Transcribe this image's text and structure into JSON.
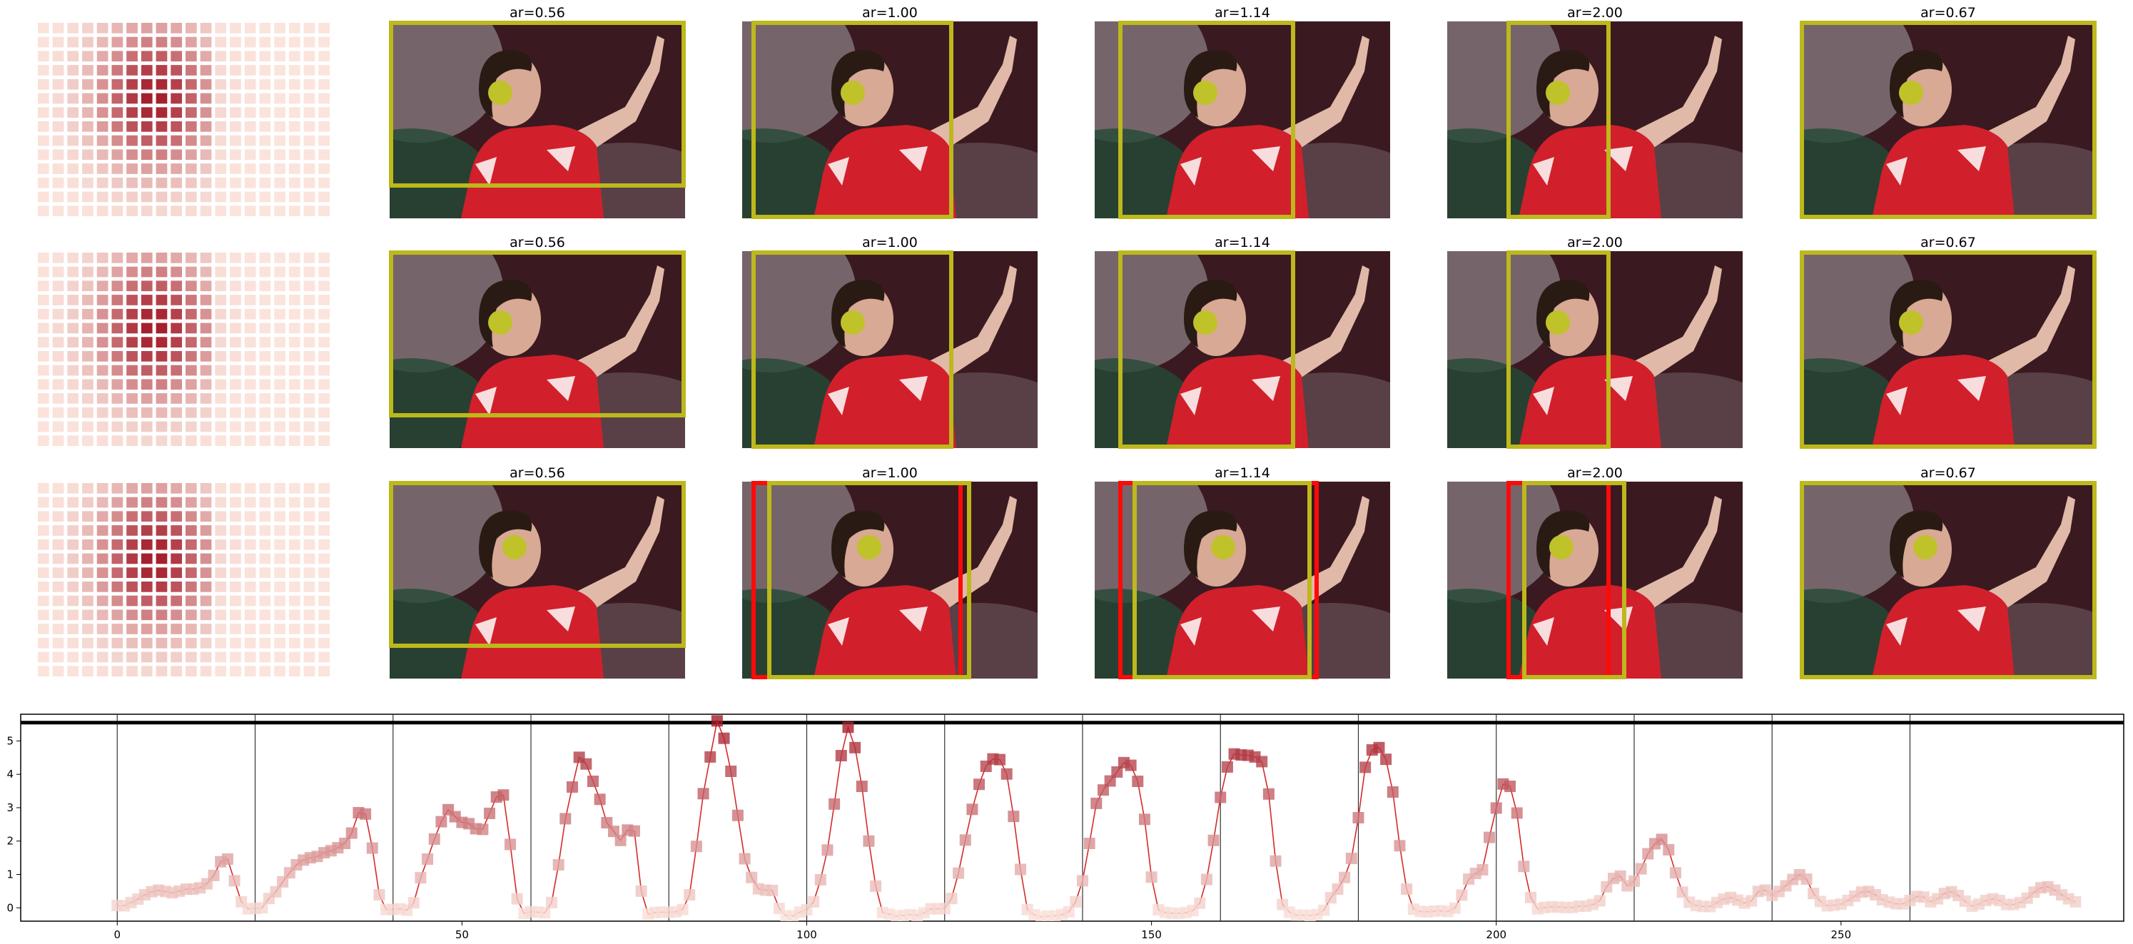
{
  "figure": {
    "crop_titles": [
      "ar=0.56",
      "ar=1.00",
      "ar=1.14",
      "ar=2.00",
      "ar=0.67"
    ],
    "rows": 3,
    "colors": {
      "crop_box": "#bdb81c",
      "alt_box": "#ff0a0a",
      "face_marker": "#c0c22a",
      "heat_low": "#fbe4dc",
      "heat_high": "#a51c2a",
      "line": "#d42a2a",
      "photo_bg": "#3a1a20",
      "jersey": "#d1202b"
    },
    "icons": [
      "heatmap-thumbnail",
      "photo-thumbnail"
    ]
  },
  "chart_data": {
    "type": "line",
    "title": "",
    "xlabel": "",
    "ylabel": "",
    "xlim": [
      -14,
      291
    ],
    "ylim": [
      -0.4,
      5.8
    ],
    "xticks": [
      0,
      50,
      100,
      150,
      200,
      250
    ],
    "yticks": [
      0,
      1,
      2,
      3,
      4,
      5
    ],
    "vlines": [
      0,
      20,
      40,
      60,
      80,
      100,
      120,
      140,
      160,
      180,
      200,
      220,
      240,
      260
    ],
    "hline": 5.55,
    "series": [
      {
        "values": [
          0.07,
          0.06,
          0.16,
          0.26,
          0.39,
          0.48,
          0.53,
          0.49,
          0.45,
          0.5,
          0.56,
          0.56,
          0.6,
          0.72,
          0.97,
          1.38,
          1.46,
          0.81,
          0.18,
          -0.03,
          -0.02,
          0.0,
          0.28,
          0.48,
          0.78,
          1.05,
          1.29,
          1.43,
          1.5,
          1.54,
          1.65,
          1.71,
          1.8,
          1.93,
          2.24,
          2.85,
          2.81,
          1.79,
          0.39,
          -0.05,
          -0.05,
          -0.03,
          -0.07,
          0.15,
          0.9,
          1.46,
          2.06,
          2.58,
          2.94,
          2.73,
          2.56,
          2.52,
          2.37,
          2.35,
          2.83,
          3.32,
          3.38,
          1.9,
          0.27,
          -0.17,
          -0.12,
          -0.13,
          -0.15,
          0.16,
          1.29,
          2.67,
          3.62,
          4.51,
          4.31,
          3.79,
          3.25,
          2.55,
          2.29,
          2.02,
          2.33,
          2.3,
          0.5,
          -0.19,
          -0.14,
          -0.13,
          -0.13,
          -0.12,
          -0.05,
          0.39,
          1.84,
          3.42,
          4.52,
          5.6,
          5.08,
          4.09,
          2.77,
          1.47,
          0.91,
          0.57,
          0.53,
          0.52,
          -0.02,
          -0.24,
          -0.24,
          -0.13,
          -0.06,
          0.18,
          0.84,
          1.73,
          3.11,
          4.56,
          5.41,
          4.8,
          3.64,
          2.0,
          0.65,
          -0.14,
          -0.19,
          -0.25,
          -0.23,
          -0.2,
          -0.23,
          -0.15,
          -0.03,
          -0.03,
          -0.02,
          0.28,
          1.04,
          2.03,
          2.95,
          3.7,
          4.24,
          4.46,
          4.44,
          4.01,
          2.74,
          1.15,
          -0.05,
          -0.21,
          -0.27,
          -0.25,
          -0.24,
          -0.2,
          -0.12,
          0.18,
          0.81,
          1.93,
          3.13,
          3.53,
          3.8,
          4.07,
          4.35,
          4.27,
          3.79,
          2.65,
          0.92,
          -0.06,
          -0.14,
          -0.16,
          -0.17,
          -0.14,
          -0.08,
          0.14,
          0.85,
          2.02,
          3.31,
          4.22,
          4.61,
          4.58,
          4.57,
          4.52,
          4.38,
          3.41,
          1.4,
          0.1,
          -0.13,
          -0.22,
          -0.22,
          -0.23,
          -0.2,
          -0.07,
          0.3,
          0.56,
          0.91,
          1.48,
          2.7,
          4.21,
          4.73,
          4.8,
          4.45,
          3.47,
          1.86,
          0.56,
          -0.04,
          -0.11,
          -0.12,
          -0.1,
          -0.09,
          -0.11,
          -0.01,
          0.38,
          0.86,
          1.03,
          1.14,
          2.11,
          2.99,
          3.71,
          3.64,
          2.84,
          1.24,
          0.31,
          -0.03,
          0.01,
          0.03,
          0.02,
          0.01,
          0.01,
          0.05,
          0.05,
          0.1,
          0.21,
          0.63,
          0.88,
          0.95,
          0.66,
          0.8,
          1.17,
          1.62,
          1.92,
          2.05,
          1.74,
          1.05,
          0.47,
          0.17,
          0.07,
          0.04,
          0.04,
          0.16,
          0.26,
          0.31,
          0.23,
          0.14,
          0.21,
          0.49,
          0.53,
          0.37,
          0.49,
          0.66,
          0.85,
          0.99,
          0.86,
          0.43,
          0.19,
          0.06,
          0.08,
          0.11,
          0.22,
          0.35,
          0.47,
          0.49,
          0.39,
          0.24,
          0.17,
          0.12,
          0.12,
          0.22,
          0.34,
          0.32,
          0.18,
          0.27,
          0.43,
          0.48,
          0.37,
          0.2,
          0.05,
          0.11,
          0.22,
          0.27,
          0.22,
          0.1,
          0.1,
          0.16,
          0.29,
          0.47,
          0.6,
          0.63,
          0.53,
          0.39,
          0.27,
          0.18
        ]
      }
    ]
  }
}
